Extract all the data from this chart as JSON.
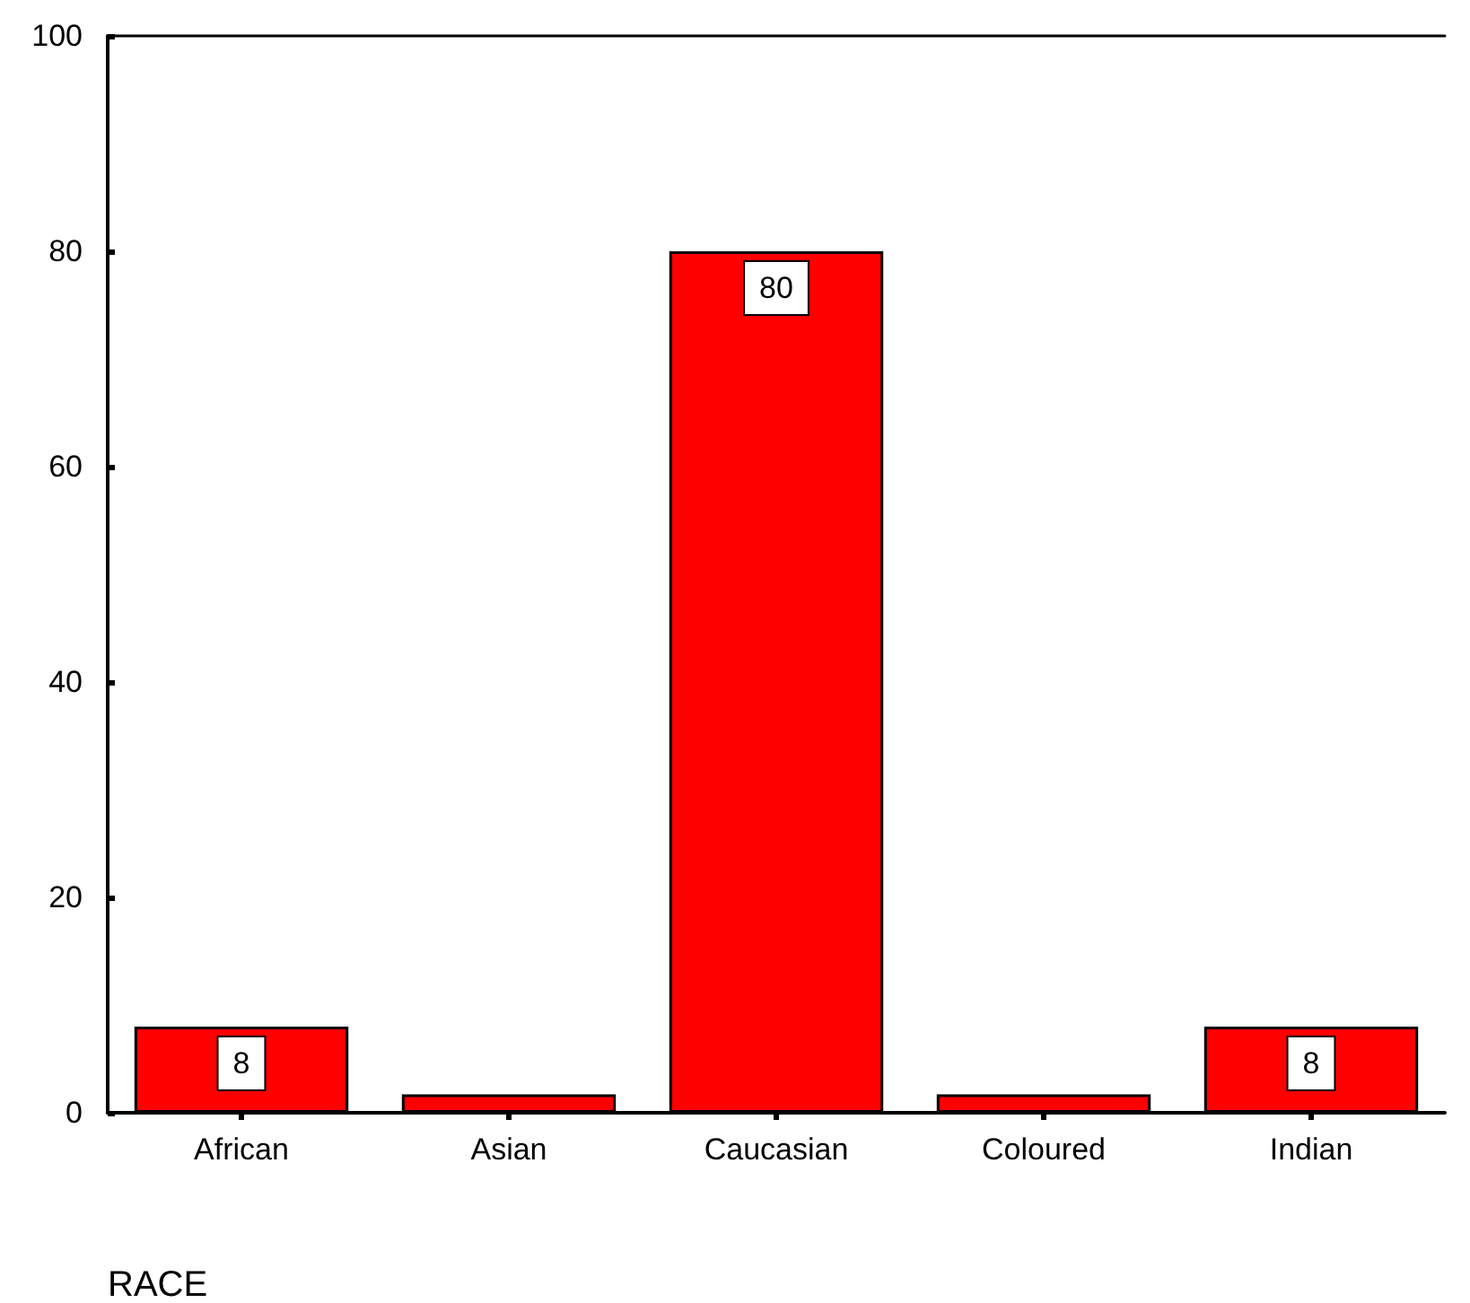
{
  "chart_data": {
    "type": "bar",
    "xlabel": "RACE",
    "categories": [
      "African",
      "Asian",
      "Caucasian",
      "Coloured",
      "Indian"
    ],
    "values": [
      8,
      1.7,
      80,
      1.7,
      8
    ],
    "value_labels": [
      "8",
      null,
      "80",
      null,
      "8"
    ],
    "color": "#ff0000",
    "ylim": [
      0,
      100
    ],
    "yticks": [
      0,
      20,
      40,
      60,
      80,
      100
    ],
    "grid": false
  }
}
